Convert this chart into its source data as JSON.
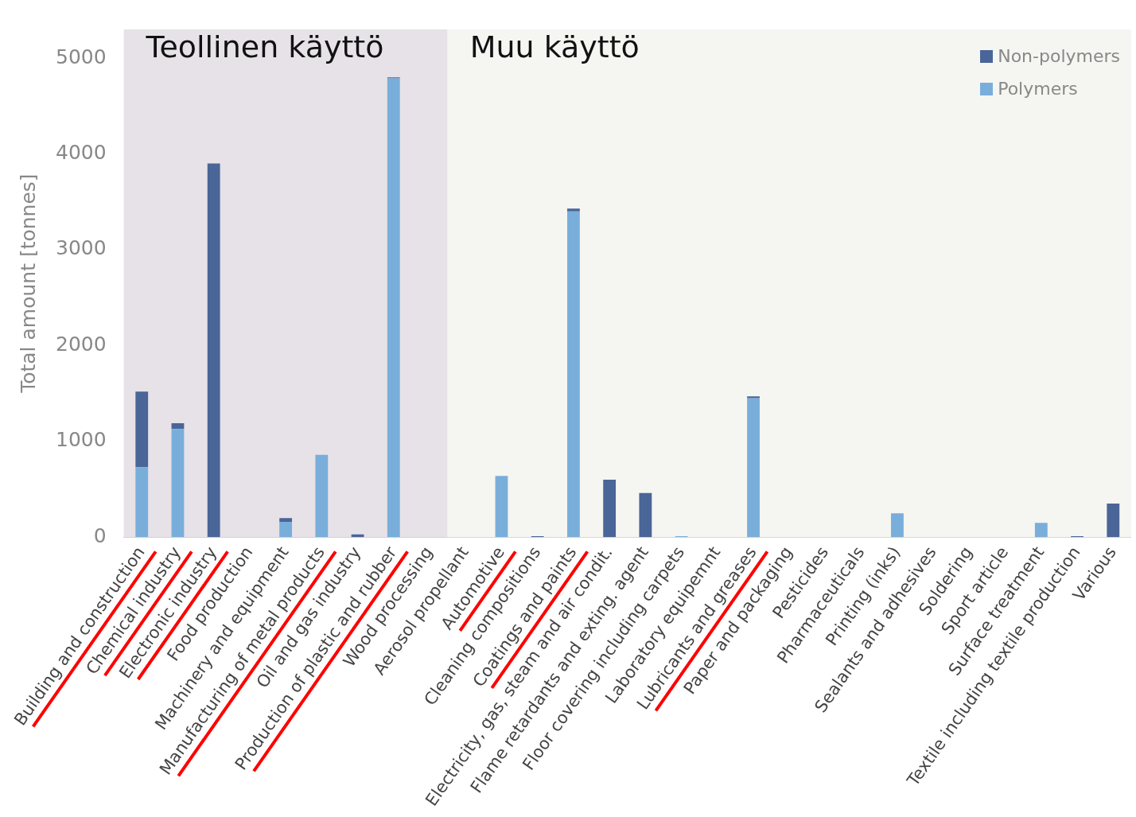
{
  "chart_data": {
    "type": "bar",
    "stacked": true,
    "ylabel": "Total amount [tonnes]",
    "categories": [
      "Building and construction",
      "Chemical industry",
      "Electronic industry",
      "Food production",
      "Machinery and equipment",
      "Manufacturing of metal products",
      "Oil and gas industry",
      "Production of plastic and rubber",
      "Wood processing",
      "Aerosol propellant",
      "Automotive",
      "Cleaning compositions",
      "Coatings and paints",
      "Electricity, gas, steam and air condit.",
      "Flame retardants and exting. agent",
      "Floor covering including carpets",
      "Laboratory equipemnt",
      "Lubricants and greases",
      "Paper and packaging",
      "Pesticides",
      "Pharmaceuticals",
      "Printing (inks)",
      "Sealants and adhesives",
      "Soldering",
      "Sport article",
      "Surface treatment",
      "Textile including textile production",
      "Various"
    ],
    "series": [
      {
        "name": "Polymers",
        "color": "#79aedb",
        "values": [
          730,
          1130,
          0,
          0,
          160,
          860,
          0,
          4790,
          0,
          0,
          640,
          0,
          3400,
          0,
          0,
          10,
          0,
          1450,
          0,
          0,
          0,
          250,
          0,
          0,
          0,
          150,
          0,
          0
        ]
      },
      {
        "name": "Non-polymers",
        "color": "#4a6597",
        "values": [
          790,
          60,
          3900,
          0,
          40,
          0,
          30,
          10,
          0,
          0,
          0,
          10,
          30,
          600,
          460,
          0,
          0,
          20,
          0,
          0,
          0,
          0,
          0,
          0,
          0,
          0,
          10,
          350
        ]
      }
    ],
    "ylim": [
      0,
      5300
    ],
    "yticks": [
      0,
      1000,
      2000,
      3000,
      4000,
      5000
    ],
    "grid": false,
    "legend": "top right",
    "bands": [
      {
        "axis": "x",
        "from": "Building and construction",
        "to": "Wood processing",
        "label": "Teollinen käyttö",
        "color": "#e7e2e8"
      },
      {
        "axis": "x",
        "from": "Aerosol propellant",
        "to": "Various",
        "label": "Muu käyttö",
        "color": "#f5f5f2"
      }
    ]
  }
}
